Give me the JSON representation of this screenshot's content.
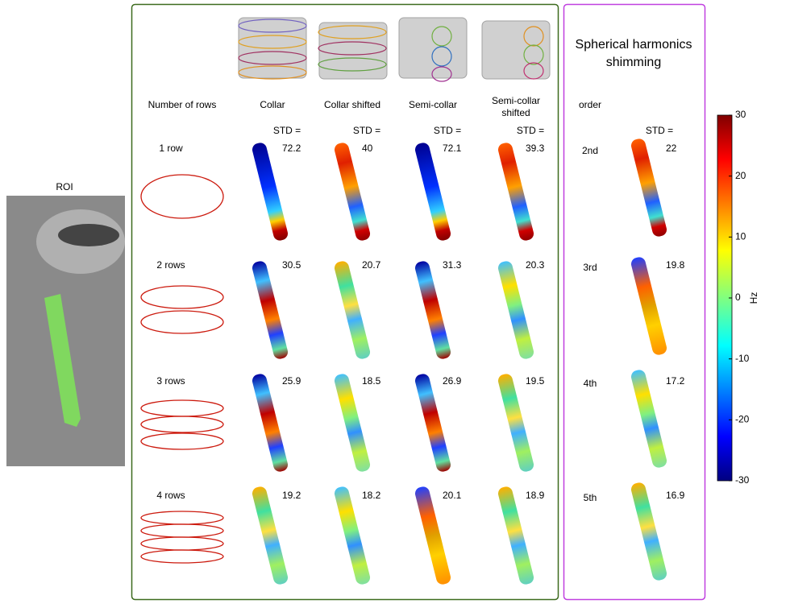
{
  "roi_label": "ROI",
  "rows_header": "Number of rows",
  "coils": [
    "Collar",
    "Collar shifted",
    "Semi-collar",
    "Semi-collar shifted"
  ],
  "std_label": "STD =",
  "rows": [
    {
      "label": "1 row",
      "std": [
        72.2,
        40,
        72.1,
        39.3
      ]
    },
    {
      "label": "2 rows",
      "std": [
        30.5,
        20.7,
        31.3,
        20.3
      ]
    },
    {
      "label": "3 rows",
      "std": [
        25.9,
        18.5,
        26.9,
        19.5
      ]
    },
    {
      "label": "4 rows",
      "std": [
        19.2,
        18.2,
        20.1,
        18.9
      ]
    }
  ],
  "sh": {
    "title_lines": [
      "Spherical harmonics",
      "shimming"
    ],
    "order_label": "order",
    "std_label": "STD =",
    "rows": [
      {
        "order": "2nd",
        "std": 22
      },
      {
        "order": "3rd",
        "std": 19.8
      },
      {
        "order": "4th",
        "std": 17.2
      },
      {
        "order": "5th",
        "std": 16.9
      }
    ]
  },
  "colorbar": {
    "ticks": [
      30,
      20,
      10,
      0,
      -10,
      -20,
      -30
    ],
    "label": "Hz"
  }
}
